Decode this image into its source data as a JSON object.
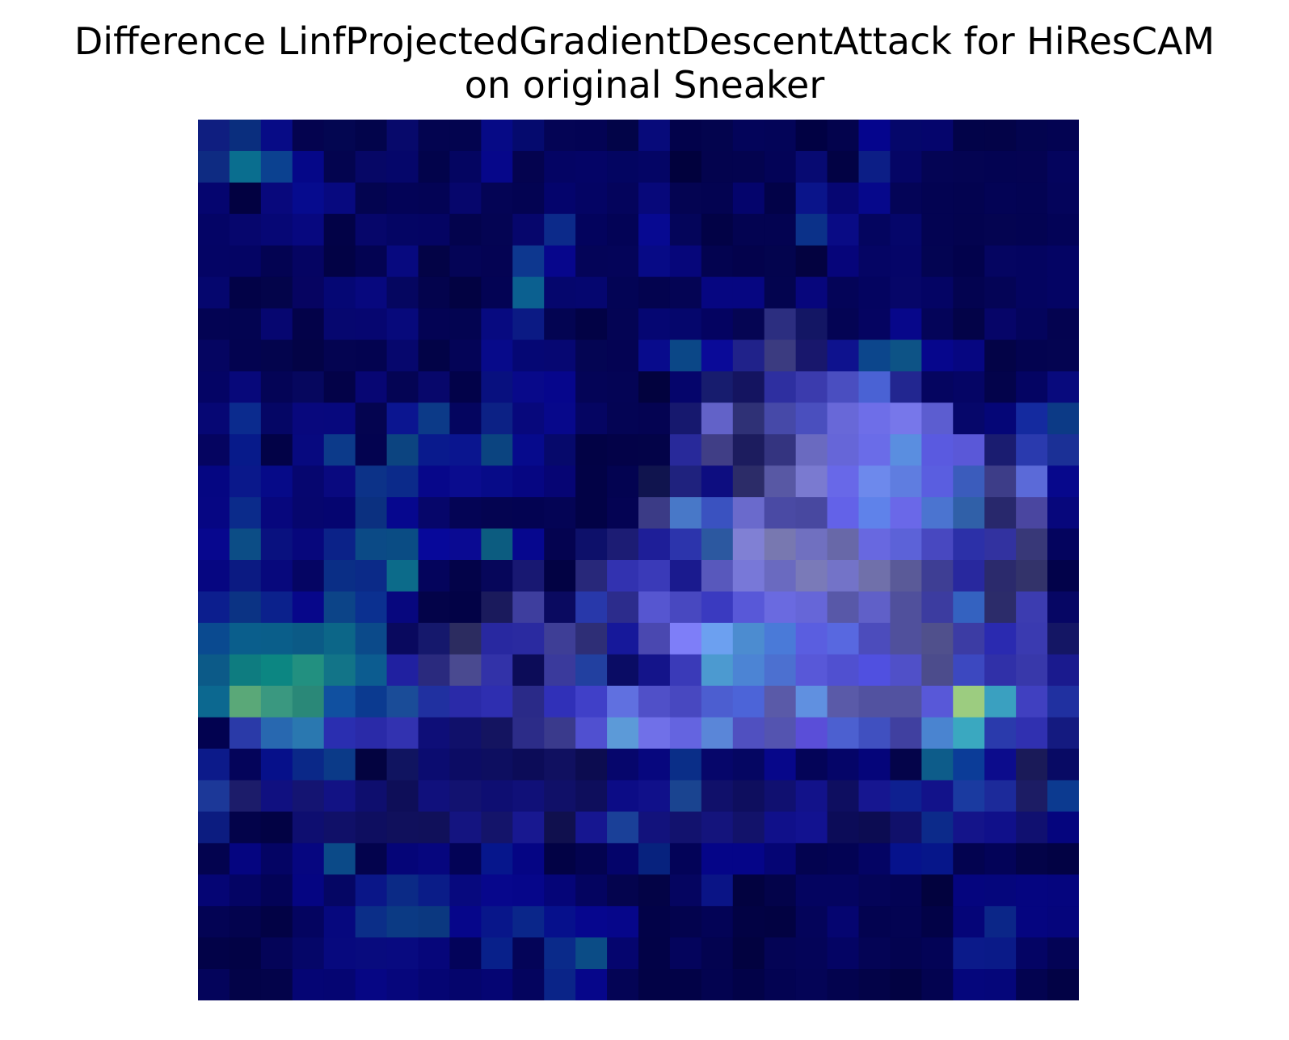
{
  "chart_data": {
    "type": "heatmap",
    "title_line1": "Difference LinfProjectedGradientDescentAttack for HiResCAM",
    "title_line2": "on original Sneaker",
    "rows": 28,
    "cols": 28,
    "colormap": "dark navy → blue → violet → teal → light green",
    "axes_visible": false,
    "grid": false,
    "cells": [
      [
        "#0f1e80",
        "#0a2e7e",
        "#070b86",
        "#04034f",
        "#030651",
        "#02044b",
        "#07096b",
        "#030450",
        "#03044f",
        "#060a86",
        "#050a6e",
        "#040455",
        "#030354",
        "#020448",
        "#070a7a",
        "#02024b",
        "#03044e",
        "#03045a",
        "#030458",
        "#010143",
        "#03034d",
        "#05058d",
        "#05076a",
        "#05056c",
        "#020349",
        "#030348",
        "#03044f",
        "#030352"
      ],
      [
        "#0e2b82",
        "#0a6e8f",
        "#0b4190",
        "#050788",
        "#03044f",
        "#060766",
        "#05066a",
        "#02034b",
        "#040561",
        "#06078a",
        "#04034f",
        "#040464",
        "#040466",
        "#030561",
        "#040565",
        "#01013d",
        "#03034e",
        "#03034f",
        "#030357",
        "#070a72",
        "#020244",
        "#0c1e86",
        "#050565",
        "#040454",
        "#040452",
        "#030352",
        "#040352",
        "#04045d"
      ],
      [
        "#05056f",
        "#020141",
        "#08087c",
        "#060b8e",
        "#07097f",
        "#030450",
        "#030357",
        "#030355",
        "#06066c",
        "#040455",
        "#030352",
        "#04046c",
        "#040464",
        "#04045c",
        "#07087a",
        "#040452",
        "#030351",
        "#04046c",
        "#020248",
        "#0a148a",
        "#060672",
        "#06088b",
        "#040457",
        "#030352",
        "#030350",
        "#030355",
        "#030353",
        "#04045b"
      ],
      [
        "#040466",
        "#06066d",
        "#060775",
        "#07087f",
        "#020247",
        "#06066a",
        "#040564",
        "#040463",
        "#03034d",
        "#040453",
        "#06066c",
        "#0c2a8a",
        "#03035d",
        "#030356",
        "#070991",
        "#04055a",
        "#020246",
        "#030351",
        "#030351",
        "#0b3189",
        "#090b85",
        "#04055f",
        "#05066a",
        "#030352",
        "#03034f",
        "#040451",
        "#030352",
        "#030357"
      ],
      [
        "#040465",
        "#040464",
        "#030352",
        "#050462",
        "#020245",
        "#030352",
        "#07097f",
        "#030346",
        "#040456",
        "#040353",
        "#0d378f",
        "#07068c",
        "#040458",
        "#040459",
        "#070a86",
        "#06067a",
        "#030350",
        "#03024c",
        "#03044e",
        "#030240",
        "#06057a",
        "#050564",
        "#050568",
        "#030452",
        "#02024c",
        "#050561",
        "#040460",
        "#040464"
      ],
      [
        "#05066e",
        "#020247",
        "#03044a",
        "#060461",
        "#050774",
        "#07087e",
        "#050660",
        "#03034d",
        "#020242",
        "#030354",
        "#0b6090",
        "#05066d",
        "#05066f",
        "#030455",
        "#03034f",
        "#040454",
        "#060681",
        "#060681",
        "#03044f",
        "#07067c",
        "#040458",
        "#040460",
        "#060668",
        "#040464",
        "#030350",
        "#040456",
        "#040460",
        "#040464"
      ],
      [
        "#030353",
        "#030451",
        "#060670",
        "#030249",
        "#06076f",
        "#060670",
        "#07097b",
        "#030354",
        "#030451",
        "#070a80",
        "#0b1a84",
        "#030452",
        "#020245",
        "#040454",
        "#050672",
        "#05066c",
        "#040361",
        "#050553",
        "#2c2e80",
        "#131664",
        "#040454",
        "#050461",
        "#07078a",
        "#040459",
        "#030348",
        "#060568",
        "#04045c",
        "#040350"
      ],
      [
        "#050561",
        "#030350",
        "#03044d",
        "#030346",
        "#040451",
        "#030350",
        "#06076d",
        "#020347",
        "#040457",
        "#070a8a",
        "#050774",
        "#060772",
        "#040553",
        "#040353",
        "#080b8c",
        "#0b4787",
        "#0a0a98",
        "#20228a",
        "#3b3b80",
        "#18176c",
        "#0e128e",
        "#0c468c",
        "#0d5386",
        "#06068c",
        "#060681",
        "#030347",
        "#030350",
        "#040451"
      ],
      [
        "#040465",
        "#07087a",
        "#040456",
        "#06075e",
        "#030248",
        "#070673",
        "#040454",
        "#07076b",
        "#020249",
        "#08107f",
        "#08098a",
        "#06068c",
        "#040457",
        "#040455",
        "#02023e",
        "#05056b",
        "#171c6e",
        "#141460",
        "#2e2fa0",
        "#3b3bad",
        "#4a4ec0",
        "#4a62d4",
        "#222690",
        "#050560",
        "#050565",
        "#03034b",
        "#040463",
        "#080a7d"
      ],
      [
        "#060774",
        "#0b2b8e",
        "#050665",
        "#08087d",
        "#07087d",
        "#040450",
        "#0b1590",
        "#0c3a88",
        "#04055f",
        "#0c2185",
        "#07087c",
        "#07088b",
        "#050562",
        "#040454",
        "#040352",
        "#16186e",
        "#6262c8",
        "#2f3176",
        "#4649a8",
        "#4a4fbe",
        "#6868d8",
        "#6e6ee8",
        "#7777ea",
        "#5c5dd0",
        "#06076a",
        "#050677",
        "#142a9f",
        "#0c3a86"
      ],
      [
        "#050460",
        "#071a8a",
        "#020247",
        "#07097f",
        "#0c3a8a",
        "#030350",
        "#0c4480",
        "#091a8d",
        "#0a158f",
        "#0b4480",
        "#060a8c",
        "#06096b",
        "#020245",
        "#030248",
        "#030348",
        "#28299a",
        "#403e86",
        "#1c1c5e",
        "#343480",
        "#6a6ac0",
        "#6666d8",
        "#6a6ce8",
        "#5a8ee0",
        "#5a5ae0",
        "#5a58d8",
        "#1a1c70",
        "#2a3aae",
        "#1b3096"
      ],
      [
        "#050682",
        "#0a188b",
        "#060a88",
        "#06066f",
        "#09097f",
        "#0c3288",
        "#0b2a8a",
        "#07078a",
        "#0a0c8e",
        "#070b88",
        "#060682",
        "#060574",
        "#020246",
        "#030351",
        "#10144e",
        "#1f227e",
        "#0d0d80",
        "#2c2c68",
        "#5858a4",
        "#7a7ad0",
        "#6868e8",
        "#6d89ec",
        "#5f7de0",
        "#5a5ee0",
        "#3b5cbc",
        "#3d3d88",
        "#5b6ad8",
        "#07088c"
      ],
      [
        "#060683",
        "#0b2b8b",
        "#07077d",
        "#06066e",
        "#050570",
        "#0b3080",
        "#06078e",
        "#06066a",
        "#040455",
        "#040451",
        "#030352",
        "#040455",
        "#020246",
        "#040353",
        "#3b3b86",
        "#4878c8",
        "#3a52c0",
        "#6a6acc",
        "#4a4aa4",
        "#4848a0",
        "#6362e8",
        "#5f82ea",
        "#6a68e8",
        "#4b74d0",
        "#3060a8",
        "#28286c",
        "#4a46a0",
        "#07077c"
      ],
      [
        "#07078e",
        "#0c4d86",
        "#09117f",
        "#07077c",
        "#0b2288",
        "#0b4a86",
        "#0a4c84",
        "#07089a",
        "#0a0a92",
        "#0c5c80",
        "#06078e",
        "#040350",
        "#0d106a",
        "#1c1c74",
        "#1e1e98",
        "#2c34ac",
        "#2c58a0",
        "#8080d4",
        "#7878b0",
        "#7070c0",
        "#6868a8",
        "#6868e0",
        "#5c62d8",
        "#4848c0",
        "#2c30a8",
        "#3232a0",
        "#383878",
        "#04045e"
      ],
      [
        "#060681",
        "#0b1a82",
        "#07087c",
        "#050563",
        "#0a2e86",
        "#0b2a88",
        "#0c6b8a",
        "#04045c",
        "#030349",
        "#06065a",
        "#181872",
        "#020243",
        "#28287a",
        "#3232b0",
        "#3a3ab8",
        "#1a1a8e",
        "#5858bc",
        "#7878d8",
        "#6a6ac0",
        "#7a7ab8",
        "#7373c8",
        "#7070aa",
        "#5a5a98",
        "#3e3e94",
        "#28289e",
        "#2b2a6c",
        "#33336a",
        "#02024a"
      ],
      [
        "#0c1e8e",
        "#0b3384",
        "#0b218c",
        "#07078a",
        "#0c4488",
        "#0b3090",
        "#07077e",
        "#030349",
        "#020246",
        "#1a1a5c",
        "#3e3e9e",
        "#0a0a60",
        "#2838aa",
        "#2c2c8c",
        "#5656d0",
        "#4848c0",
        "#3a3ac0",
        "#5858d8",
        "#6a6ae0",
        "#6666d8",
        "#5858a8",
        "#6060c8",
        "#50509c",
        "#3c3ca0",
        "#3462c0",
        "#2c2c6a",
        "#3c3cb0",
        "#060664"
      ],
      [
        "#0a4a90",
        "#0a5e8c",
        "#0a5e8a",
        "#0b5a86",
        "#0c6688",
        "#0b4a8a",
        "#09095e",
        "#15186c",
        "#2c2c60",
        "#2828a0",
        "#2a2aa0",
        "#3e3e96",
        "#2e2e76",
        "#16189a",
        "#4a48b0",
        "#7e7ef8",
        "#6ca0f0",
        "#4c8cd0",
        "#4a7ad8",
        "#5a5ee0",
        "#5868e0",
        "#4c4cbc",
        "#50509c",
        "#50508c",
        "#3c3ca4",
        "#2a2ab0",
        "#3a3ab0",
        "#141664"
      ],
      [
        "#0c5a88",
        "#0e7c80",
        "#0c8682",
        "#229080",
        "#127488",
        "#0c5c90",
        "#2020a0",
        "#2a2a7e",
        "#4a4a90",
        "#3232a8",
        "#0c0c58",
        "#3a3a9c",
        "#2240a0",
        "#0a0c64",
        "#14148a",
        "#3a3ab8",
        "#4c9ad0",
        "#4c84d4",
        "#4c70d0",
        "#5858d8",
        "#5050d0",
        "#5050e0",
        "#5050c8",
        "#4c4c8c",
        "#3c48c0",
        "#3030a8",
        "#3838aa",
        "#1a1a8e"
      ],
      [
        "#0c6890",
        "#5aa878",
        "#3a9880",
        "#2a8878",
        "#1050a0",
        "#0b3a90",
        "#1a4c98",
        "#2030a0",
        "#2a2aa8",
        "#2e2eb0",
        "#2a2a88",
        "#3030b8",
        "#4040c8",
        "#6070e0",
        "#5050c8",
        "#4848c0",
        "#4c5ed0",
        "#4c64d8",
        "#5a5aa8",
        "#6090e0",
        "#5a5aa8",
        "#5252a0",
        "#5252a0",
        "#5858d8",
        "#9ccc80",
        "#3aa0c0",
        "#4040c0",
        "#2030a0"
      ],
      [
        "#020250",
        "#2a3aa8",
        "#2868b0",
        "#2a78b0",
        "#2a2eb0",
        "#2a2aa8",
        "#3232b0",
        "#0e0e78",
        "#10106a",
        "#141460",
        "#2c2c88",
        "#3a3a8c",
        "#5050d0",
        "#5c9ad8",
        "#7070e8",
        "#6464e0",
        "#5a86d8",
        "#5050c0",
        "#5454b0",
        "#5a4ed8",
        "#4c60d0",
        "#4050c0",
        "#4040a0",
        "#4a84d0",
        "#3aa8c0",
        "#2a3aac",
        "#3030b0",
        "#141a80"
      ],
      [
        "#0c1a8a",
        "#04045a",
        "#06108a",
        "#0a2888",
        "#0b3a88",
        "#030340",
        "#101460",
        "#0b0c70",
        "#0c0c64",
        "#0d0e60",
        "#0c0c58",
        "#101060",
        "#0c0c50",
        "#06066c",
        "#07077e",
        "#0a2e88",
        "#06066a",
        "#050662",
        "#07078a",
        "#040458",
        "#050568",
        "#05057a",
        "#04044a",
        "#0d5c8a",
        "#0b3c98",
        "#0c0c8c",
        "#1a1a58",
        "#080a64"
      ],
      [
        "#1c3898",
        "#1c1c6a",
        "#101080",
        "#141472",
        "#121284",
        "#0e0e6e",
        "#0e0e58",
        "#10107c",
        "#121270",
        "#0e0e72",
        "#101078",
        "#101068",
        "#0e0e5c",
        "#0c0c86",
        "#10108a",
        "#1a4490",
        "#10106a",
        "#0e0e5e",
        "#101070",
        "#12128a",
        "#0e0e60",
        "#161690",
        "#0e2090",
        "#12128a",
        "#1a3aa0",
        "#1c2a9a",
        "#1c1c64",
        "#0c3a90"
      ],
      [
        "#0c1c80",
        "#03034a",
        "#020244",
        "#0e0e70",
        "#101068",
        "#0e0e60",
        "#10105c",
        "#10105a",
        "#141480",
        "#14146a",
        "#181890",
        "#10104e",
        "#161690",
        "#1a4098",
        "#12127c",
        "#12126e",
        "#14147c",
        "#12126a",
        "#10108a",
        "#121290",
        "#0c0c58",
        "#0c0c52",
        "#10106a",
        "#0c2a8a",
        "#14148a",
        "#10108a",
        "#101070",
        "#05057e"
      ],
      [
        "#03034f",
        "#050580",
        "#040464",
        "#060680",
        "#0b4a88",
        "#03034d",
        "#050578",
        "#06067e",
        "#030356",
        "#06168c",
        "#050584",
        "#020245",
        "#030350",
        "#04046a",
        "#07227e",
        "#030358",
        "#050588",
        "#050588",
        "#050574",
        "#030350",
        "#030354",
        "#040464",
        "#06128c",
        "#06168a",
        "#030350",
        "#030358",
        "#030348",
        "#020244"
      ],
      [
        "#050574",
        "#040464",
        "#030357",
        "#050582",
        "#050664",
        "#0a1688",
        "#0b2a86",
        "#0a1c88",
        "#07097e",
        "#07078c",
        "#06068a",
        "#050578",
        "#040460",
        "#04044e",
        "#030346",
        "#050560",
        "#0a1486",
        "#020240",
        "#03034a",
        "#040460",
        "#040460",
        "#040458",
        "#030354",
        "#02023e",
        "#05057e",
        "#05067c",
        "#050580",
        "#05057e"
      ],
      [
        "#030354",
        "#03034e",
        "#020245",
        "#040460",
        "#06087e",
        "#0b2e88",
        "#0b3a84",
        "#0b3880",
        "#06068a",
        "#08168a",
        "#0a268a",
        "#06108c",
        "#06068e",
        "#06068a",
        "#020248",
        "#03034e",
        "#030356",
        "#020244",
        "#020242",
        "#04045a",
        "#050570",
        "#030350",
        "#030352",
        "#020247",
        "#050578",
        "#0b2688",
        "#050580",
        "#05057c"
      ],
      [
        "#020248",
        "#020245",
        "#040458",
        "#050668",
        "#07097e",
        "#080b7e",
        "#080a80",
        "#06067a",
        "#03035a",
        "#08208a",
        "#040458",
        "#0a2a8a",
        "#0b4c86",
        "#05056e",
        "#020247",
        "#04045c",
        "#030350",
        "#020240",
        "#040455",
        "#040458",
        "#040464",
        "#040455",
        "#030350",
        "#030356",
        "#0b1a8a",
        "#0a1a88",
        "#040464",
        "#030355"
      ],
      [
        "#04045b",
        "#030348",
        "#03034a",
        "#050574",
        "#050572",
        "#060684",
        "#06067c",
        "#050573",
        "#05056c",
        "#050573",
        "#04045e",
        "#0a2488",
        "#06068a",
        "#040455",
        "#020246",
        "#020247",
        "#030350",
        "#020248",
        "#030352",
        "#040456",
        "#03034e",
        "#030348",
        "#020242",
        "#030350",
        "#05067c",
        "#05067a",
        "#030350",
        "#020245"
      ]
    ]
  }
}
